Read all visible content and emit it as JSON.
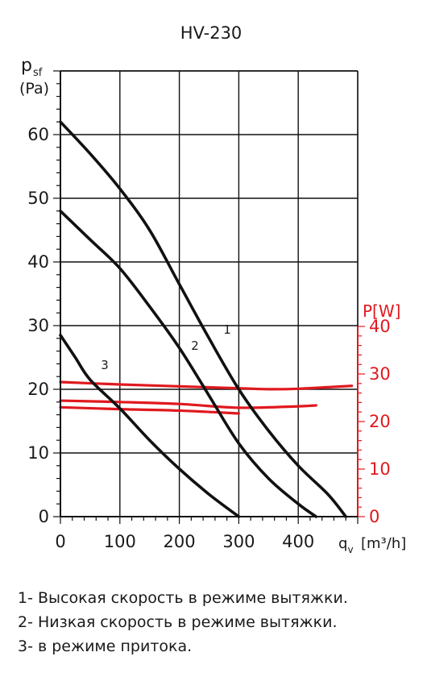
{
  "chart_data": {
    "type": "line",
    "title": "HV-230",
    "ylabel_main": "p",
    "ylabel_sub": "sf",
    "yunit": "(Pa)",
    "xlabel_main": "q",
    "xlabel_sub": "v",
    "xunit": "[m³/h]",
    "y2label": "P[W]",
    "xlim": [
      0,
      500
    ],
    "ylim": [
      0,
      70
    ],
    "y2lim": [
      0,
      40
    ],
    "xticks": [
      "0",
      "100",
      "200",
      "300",
      "400"
    ],
    "yticks": [
      "0",
      "10",
      "20",
      "30",
      "40",
      "50",
      "60"
    ],
    "y2ticks": [
      "0",
      "10",
      "20",
      "30",
      "40"
    ],
    "grid": true,
    "colors": {
      "pressure": "#111111",
      "power": "#e0191f",
      "grid": "#111111"
    },
    "pressure_series": [
      {
        "name": "1",
        "x": [
          0,
          50,
          100,
          150,
          200,
          250,
          300,
          350,
          400,
          450,
          480
        ],
        "y": [
          62,
          57,
          51.5,
          45,
          36.5,
          28,
          20,
          13.5,
          8,
          3.5,
          0
        ]
      },
      {
        "name": "2",
        "x": [
          0,
          50,
          100,
          150,
          200,
          250,
          300,
          350,
          400,
          430
        ],
        "y": [
          48,
          43.5,
          39,
          33,
          26.5,
          19,
          11.5,
          6,
          2,
          0
        ]
      },
      {
        "name": "3",
        "x": [
          0,
          25,
          50,
          100,
          150,
          200,
          250,
          300
        ],
        "y": [
          28.5,
          25,
          21.5,
          17,
          12,
          7.5,
          3.5,
          0
        ]
      }
    ],
    "power_series": [
      {
        "x": [
          0,
          100,
          200,
          300,
          350,
          400,
          490
        ],
        "y": [
          28.3,
          27.8,
          27.4,
          27.0,
          26.8,
          26.9,
          27.5
        ]
      },
      {
        "x": [
          0,
          100,
          200,
          300,
          400,
          430
        ],
        "y": [
          24.4,
          24.1,
          23.7,
          22.9,
          23.2,
          23.4
        ]
      },
      {
        "x": [
          0,
          100,
          200,
          300
        ],
        "y": [
          23.0,
          22.6,
          22.3,
          21.7
        ]
      }
    ]
  },
  "legend": [
    "1- Высокая скорость в режиме вытяжки.",
    "2- Низкая скорость в режиме вытяжки.",
    "3- в режиме притока."
  ]
}
